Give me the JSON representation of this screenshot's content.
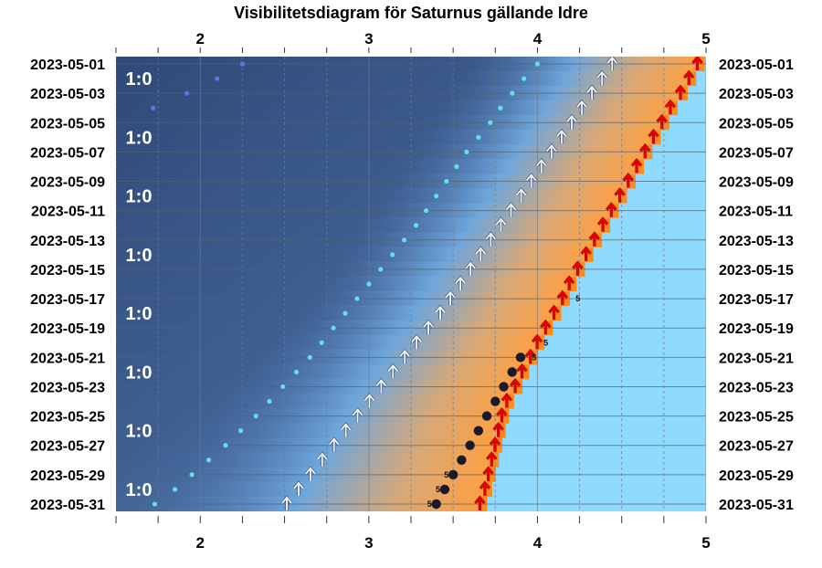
{
  "chart_data": {
    "type": "scatter",
    "title": "Visibilitetsdiagram för Saturnus gällande Idre",
    "x_ticks": [
      "2",
      "3",
      "4",
      "5"
    ],
    "xlim": [
      1.5,
      5.0
    ],
    "dates": [
      "2023-05-01",
      "2023-05-02",
      "2023-05-03",
      "2023-05-04",
      "2023-05-05",
      "2023-05-06",
      "2023-05-07",
      "2023-05-08",
      "2023-05-09",
      "2023-05-10",
      "2023-05-11",
      "2023-05-12",
      "2023-05-13",
      "2023-05-14",
      "2023-05-15",
      "2023-05-16",
      "2023-05-17",
      "2023-05-18",
      "2023-05-19",
      "2023-05-20",
      "2023-05-21",
      "2023-05-22",
      "2023-05-23",
      "2023-05-24",
      "2023-05-25",
      "2023-05-26",
      "2023-05-27",
      "2023-05-28",
      "2023-05-29",
      "2023-05-30",
      "2023-05-31"
    ],
    "date_labels": [
      "2023-05-01",
      "2023-05-03",
      "2023-05-05",
      "2023-05-07",
      "2023-05-09",
      "2023-05-11",
      "2023-05-13",
      "2023-05-15",
      "2023-05-17",
      "2023-05-19",
      "2023-05-21",
      "2023-05-23",
      "2023-05-25",
      "2023-05-27",
      "2023-05-29",
      "2023-05-31"
    ],
    "sunrise": [
      4.97,
      4.92,
      4.87,
      4.81,
      4.76,
      4.71,
      4.66,
      4.61,
      4.56,
      4.51,
      4.46,
      4.41,
      4.36,
      4.31,
      4.26,
      4.21,
      4.17,
      4.12,
      4.07,
      4.02,
      3.98,
      3.93,
      3.89,
      3.84,
      3.81,
      3.79,
      3.77,
      3.75,
      3.73,
      3.71,
      3.68
    ],
    "nautical_twilight": [
      4.4,
      4.34,
      4.28,
      4.22,
      4.16,
      4.1,
      4.04,
      3.98,
      3.92,
      3.86,
      3.8,
      3.74,
      3.68,
      3.62,
      3.56,
      3.5,
      3.44,
      3.38,
      3.31,
      3.24,
      3.17,
      3.1,
      3.03,
      2.96,
      2.89,
      2.82,
      2.75,
      2.68,
      2.61,
      2.54,
      2.47
    ],
    "planet_dots": [
      {
        "date": "2023-05-21",
        "x": 3.9
      },
      {
        "date": "2023-05-22",
        "x": 3.85
      },
      {
        "date": "2023-05-23",
        "x": 3.8
      },
      {
        "date": "2023-05-24",
        "x": 3.75
      },
      {
        "date": "2023-05-25",
        "x": 3.7
      },
      {
        "date": "2023-05-26",
        "x": 3.65
      },
      {
        "date": "2023-05-27",
        "x": 3.6
      },
      {
        "date": "2023-05-28",
        "x": 3.55
      },
      {
        "date": "2023-05-29",
        "x": 3.5
      },
      {
        "date": "2023-05-30",
        "x": 3.45
      },
      {
        "date": "2023-05-31",
        "x": 3.4
      }
    ],
    "magnitude_labels": [
      {
        "date": "2023-05-17",
        "x": 4.24,
        "text": "5"
      },
      {
        "date": "2023-05-20",
        "x": 4.05,
        "text": "5"
      },
      {
        "date": "2023-05-21",
        "x": 3.98,
        "text": "5"
      },
      {
        "date": "2023-05-29",
        "x": 3.46,
        "text": "5"
      },
      {
        "date": "2023-05-30",
        "x": 3.41,
        "text": "5"
      },
      {
        "date": "2023-05-31",
        "x": 3.36,
        "text": "5"
      }
    ],
    "moon_dots": [
      {
        "date": "2023-05-01",
        "x": 2.25,
        "bright": false
      },
      {
        "date": "2023-05-02",
        "x": 2.1,
        "bright": false
      },
      {
        "date": "2023-05-03",
        "x": 1.92,
        "bright": false
      },
      {
        "date": "2023-05-04",
        "x": 1.72,
        "bright": false
      },
      {
        "date": "2023-05-01",
        "x": 4.0,
        "bright": true
      },
      {
        "date": "2023-05-02",
        "x": 3.92,
        "bright": true
      },
      {
        "date": "2023-05-03",
        "x": 3.85,
        "bright": true
      },
      {
        "date": "2023-05-04",
        "x": 3.78,
        "bright": true
      },
      {
        "date": "2023-05-05",
        "x": 3.72,
        "bright": true
      },
      {
        "date": "2023-05-06",
        "x": 3.65,
        "bright": true
      },
      {
        "date": "2023-05-07",
        "x": 3.58,
        "bright": true
      },
      {
        "date": "2023-05-08",
        "x": 3.52,
        "bright": true
      },
      {
        "date": "2023-05-09",
        "x": 3.46,
        "bright": true
      },
      {
        "date": "2023-05-10",
        "x": 3.4,
        "bright": true
      },
      {
        "date": "2023-05-11",
        "x": 3.34,
        "bright": true
      },
      {
        "date": "2023-05-12",
        "x": 3.28,
        "bright": true
      },
      {
        "date": "2023-05-13",
        "x": 3.21,
        "bright": true
      },
      {
        "date": "2023-05-14",
        "x": 3.14,
        "bright": true
      },
      {
        "date": "2023-05-15",
        "x": 3.07,
        "bright": true
      },
      {
        "date": "2023-05-16",
        "x": 3.0,
        "bright": true
      },
      {
        "date": "2023-05-17",
        "x": 2.93,
        "bright": true
      },
      {
        "date": "2023-05-18",
        "x": 2.86,
        "bright": true
      },
      {
        "date": "2023-05-19",
        "x": 2.79,
        "bright": true
      },
      {
        "date": "2023-05-20",
        "x": 2.72,
        "bright": true
      },
      {
        "date": "2023-05-21",
        "x": 2.65,
        "bright": true
      },
      {
        "date": "2023-05-22",
        "x": 2.57,
        "bright": true
      },
      {
        "date": "2023-05-23",
        "x": 2.49,
        "bright": true
      },
      {
        "date": "2023-05-24",
        "x": 2.41,
        "bright": true
      },
      {
        "date": "2023-05-25",
        "x": 2.33,
        "bright": true
      },
      {
        "date": "2023-05-26",
        "x": 2.24,
        "bright": true
      },
      {
        "date": "2023-05-27",
        "x": 2.15,
        "bright": true
      },
      {
        "date": "2023-05-28",
        "x": 2.05,
        "bright": true
      },
      {
        "date": "2023-05-29",
        "x": 1.95,
        "bright": true
      },
      {
        "date": "2023-05-30",
        "x": 1.85,
        "bright": true
      },
      {
        "date": "2023-05-31",
        "x": 1.73,
        "bright": true
      }
    ],
    "moon_labels": [
      {
        "date": "2023-05-02",
        "text": "1:0"
      },
      {
        "date": "2023-05-06",
        "text": "1:0"
      },
      {
        "date": "2023-05-10",
        "text": "1:0"
      },
      {
        "date": "2023-05-14",
        "text": "1:0"
      },
      {
        "date": "2023-05-18",
        "text": "1:0"
      },
      {
        "date": "2023-05-22",
        "text": "1:0"
      },
      {
        "date": "2023-05-26",
        "text": "1:0"
      },
      {
        "date": "2023-05-30",
        "text": "1:0"
      }
    ],
    "colors": {
      "night": "#3a5580",
      "twilight": "#6ea6dc",
      "dawn_orange": "#ffa040",
      "day": "#8fdaff",
      "sunrise_arrow": "#ee0000",
      "twilight_arrow": "#ffffff",
      "planet": "#1a1a2a",
      "moon_dim": "#5577ee",
      "moon_bright": "#66ddee"
    }
  }
}
